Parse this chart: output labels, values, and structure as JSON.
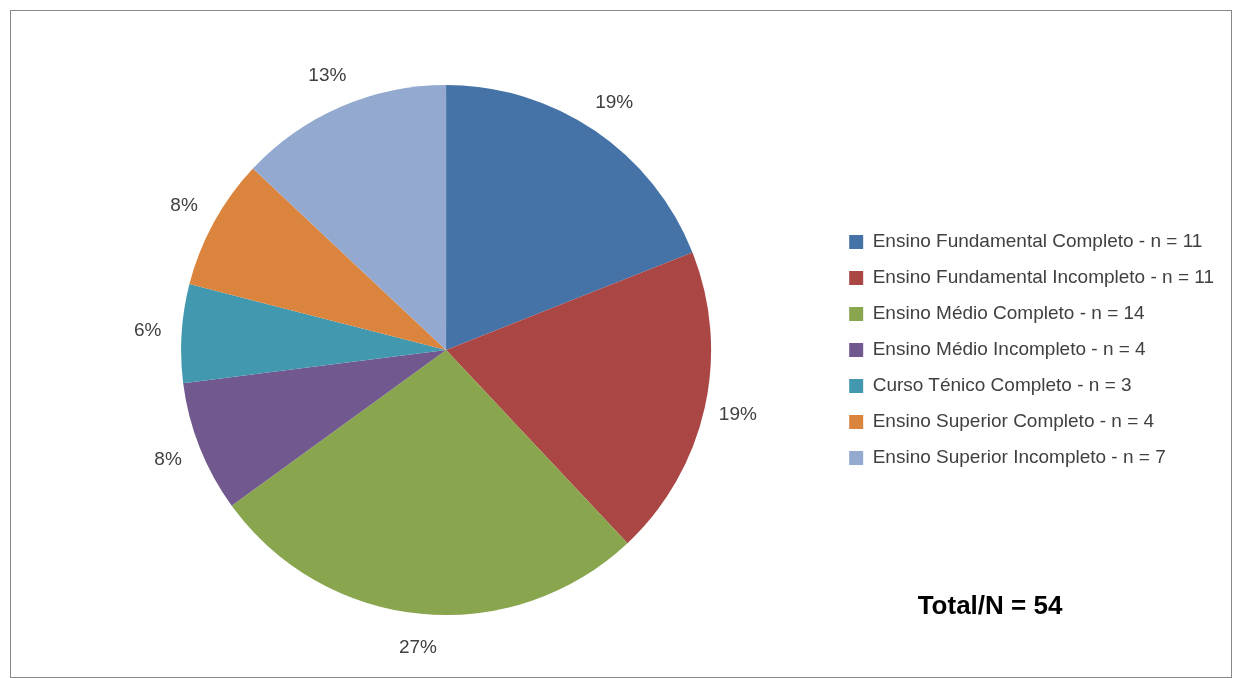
{
  "chart_data": {
    "type": "pie",
    "categories": [
      "Ensino Fundamental Completo - n = 11",
      "Ensino Fundamental Incompleto - n = 11",
      "Ensino Médio Completo - n = 14",
      "Ensino Médio Incompleto - n = 4",
      "Curso Ténico Completo - n = 3",
      "Ensino Superior Completo - n = 4",
      "Ensino Superior Incompleto - n = 7"
    ],
    "values": [
      19,
      19,
      27,
      8,
      6,
      8,
      13
    ],
    "colors": [
      "#4572a7",
      "#aa4643",
      "#89a54e",
      "#71588f",
      "#4198af",
      "#db843d",
      "#93a9cf"
    ],
    "value_labels": [
      "19%",
      "19%",
      "27%",
      "8%",
      "6%",
      "8%",
      "13%"
    ],
    "legend": "right",
    "annotations": [
      "Total/N = 54"
    ]
  }
}
